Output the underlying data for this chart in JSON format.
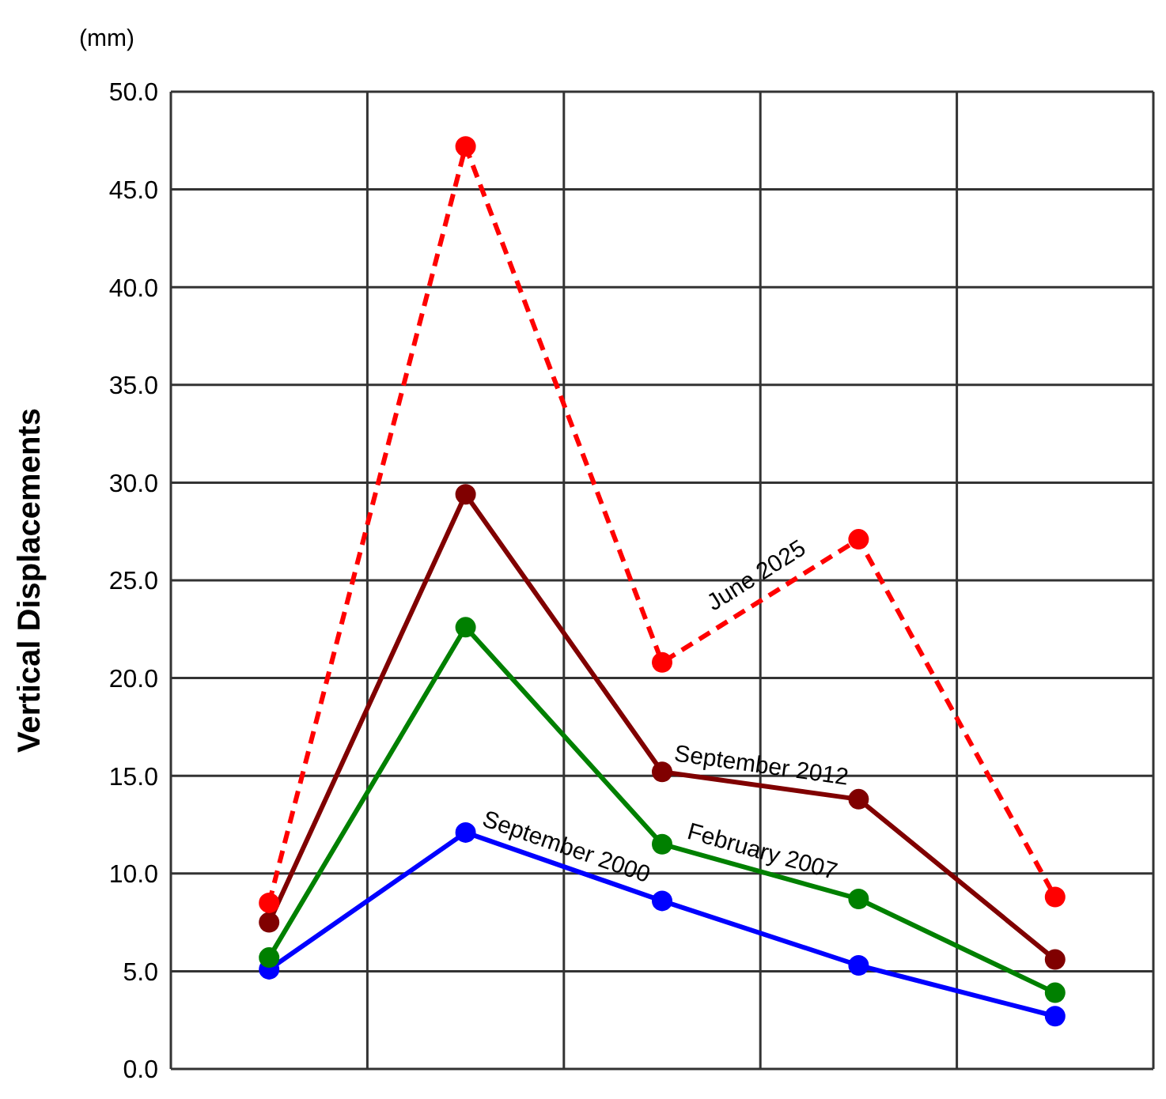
{
  "chart_data": {
    "type": "line",
    "ylabel": "Vertical Displacements",
    "annotations": [
      "(mm)"
    ],
    "categories": [
      null,
      null,
      null,
      null,
      null
    ],
    "ylim": [
      0,
      50
    ],
    "yticks": [
      {
        "value": 0,
        "label": "0.0"
      },
      {
        "value": 5,
        "label": "5.0"
      },
      {
        "value": 10,
        "label": "10.0"
      },
      {
        "value": 15,
        "label": "15.0"
      },
      {
        "value": 20,
        "label": "20.0"
      },
      {
        "value": 25,
        "label": "25.0"
      },
      {
        "value": 30,
        "label": "30.0"
      },
      {
        "value": 35,
        "label": "35.0"
      },
      {
        "value": 40,
        "label": "40.0"
      },
      {
        "value": 45,
        "label": "45.0"
      },
      {
        "value": 50,
        "label": "50.0"
      }
    ],
    "tick_labels": "y",
    "grid": true,
    "legend": false,
    "marker": "circle",
    "line_style": "solid",
    "series": [
      {
        "name": "September 2000",
        "color": "#0000ff",
        "values": [
          5.1,
          12.1,
          8.6,
          5.3,
          2.7
        ]
      },
      {
        "name": "February 2007",
        "color": "#008000",
        "values": [
          5.7,
          22.6,
          11.5,
          8.7,
          3.9
        ]
      },
      {
        "name": "September 2012",
        "color": "#800000",
        "values": [
          7.5,
          29.4,
          15.2,
          13.8,
          5.6
        ]
      },
      {
        "name": "June 2025",
        "color": "#ff0000",
        "line_style": "dashed",
        "values": [
          8.5,
          47.2,
          20.8,
          27.1,
          8.8
        ]
      }
    ]
  }
}
